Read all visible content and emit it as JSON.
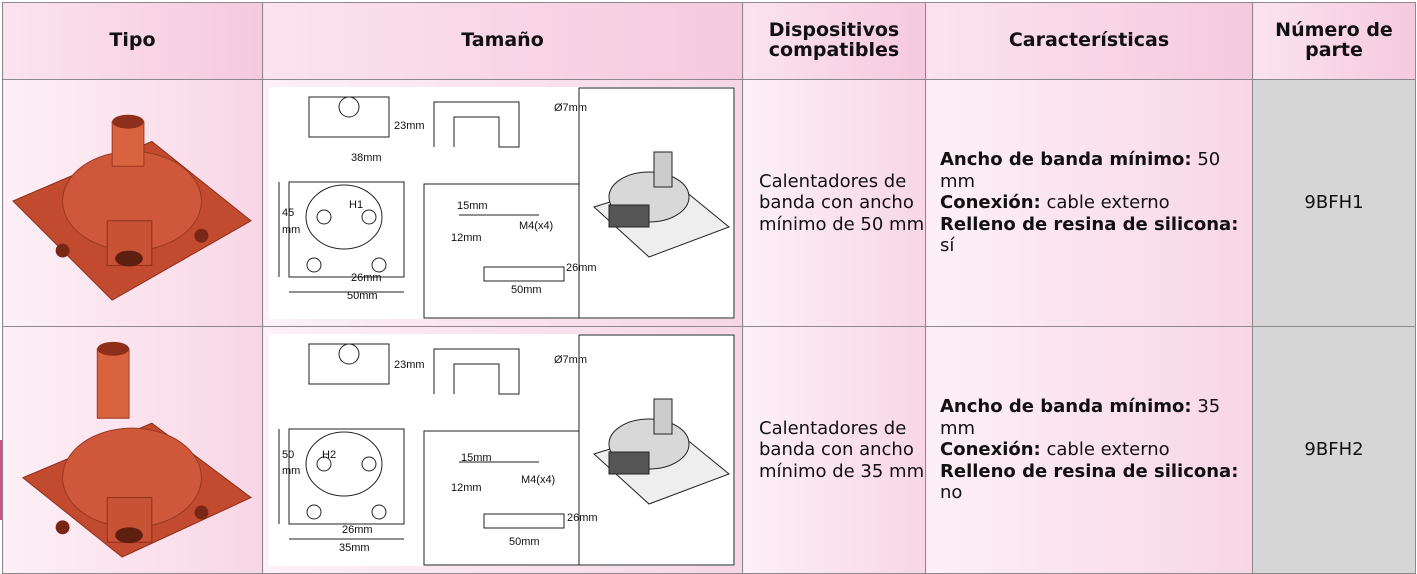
{
  "table": {
    "headers": [
      "Tipo",
      "Tamaño",
      "Dispositivos compatibles",
      "Características",
      "Número de parte"
    ],
    "rows": [
      {
        "drawing_labels": [
          "23mm",
          "Ø7mm",
          "38mm",
          "45",
          "mm",
          "H1",
          "26mm",
          "50mm",
          "15mm",
          "M4(x4)",
          "12mm",
          "26mm",
          "50mm"
        ],
        "devices": "Calentadores de banda con ancho mínimo de 50 mm",
        "features": [
          {
            "label": "Ancho de banda mínimo:",
            "text": "50 mm"
          },
          {
            "label": "Conexión:",
            "text": "cable externo"
          },
          {
            "label": "Relleno de resina de silicona:",
            "text": "sí"
          }
        ],
        "part_number": "9BFH1"
      },
      {
        "drawing_labels": [
          "23mm",
          "Ø7mm",
          "50",
          "mm",
          "H2",
          "26mm",
          "35mm",
          "15mm",
          "M4(x4)",
          "12mm",
          "26mm",
          "50mm"
        ],
        "devices": "Calentadores de banda con ancho mínimo de 35 mm",
        "features": [
          {
            "label": "Ancho de banda mínimo:",
            "text": "35 mm"
          },
          {
            "label": "Conexión:",
            "text": "cable externo"
          },
          {
            "label": "Relleno de resina de silicona:",
            "text": "no"
          }
        ],
        "part_number": "9BFH2"
      }
    ]
  }
}
